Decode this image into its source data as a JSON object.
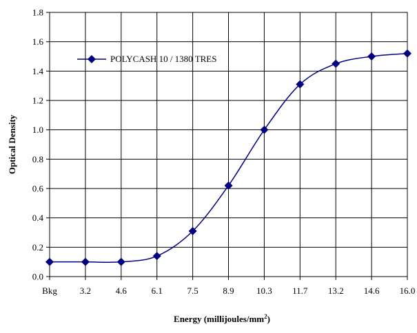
{
  "chart_data": {
    "type": "line",
    "categories": [
      "Bkg",
      "3.2",
      "4.6",
      "6.1",
      "7.5",
      "8.9",
      "10.3",
      "11.7",
      "13.2",
      "14.6",
      "16.0"
    ],
    "series": [
      {
        "name": "POLYCASH 10 / 1380 TRES",
        "values": [
          0.1,
          0.1,
          0.1,
          0.14,
          0.31,
          0.62,
          1.0,
          1.31,
          1.45,
          1.5,
          1.52
        ],
        "color": "#000080",
        "marker": "diamond",
        "smooth": true
      }
    ],
    "title": "",
    "xlabel": "Energy (millijoules/mm",
    "xlabel_superscript": "2",
    "xlabel_suffix": ")",
    "ylabel": "Optical Density",
    "ylim": [
      0,
      1.8
    ],
    "yticks": [
      "0.0",
      "0.2",
      "0.4",
      "0.6",
      "0.8",
      "1.0",
      "1.2",
      "1.4",
      "1.6",
      "1.8"
    ],
    "grid": true,
    "legend_position": "top-left"
  }
}
